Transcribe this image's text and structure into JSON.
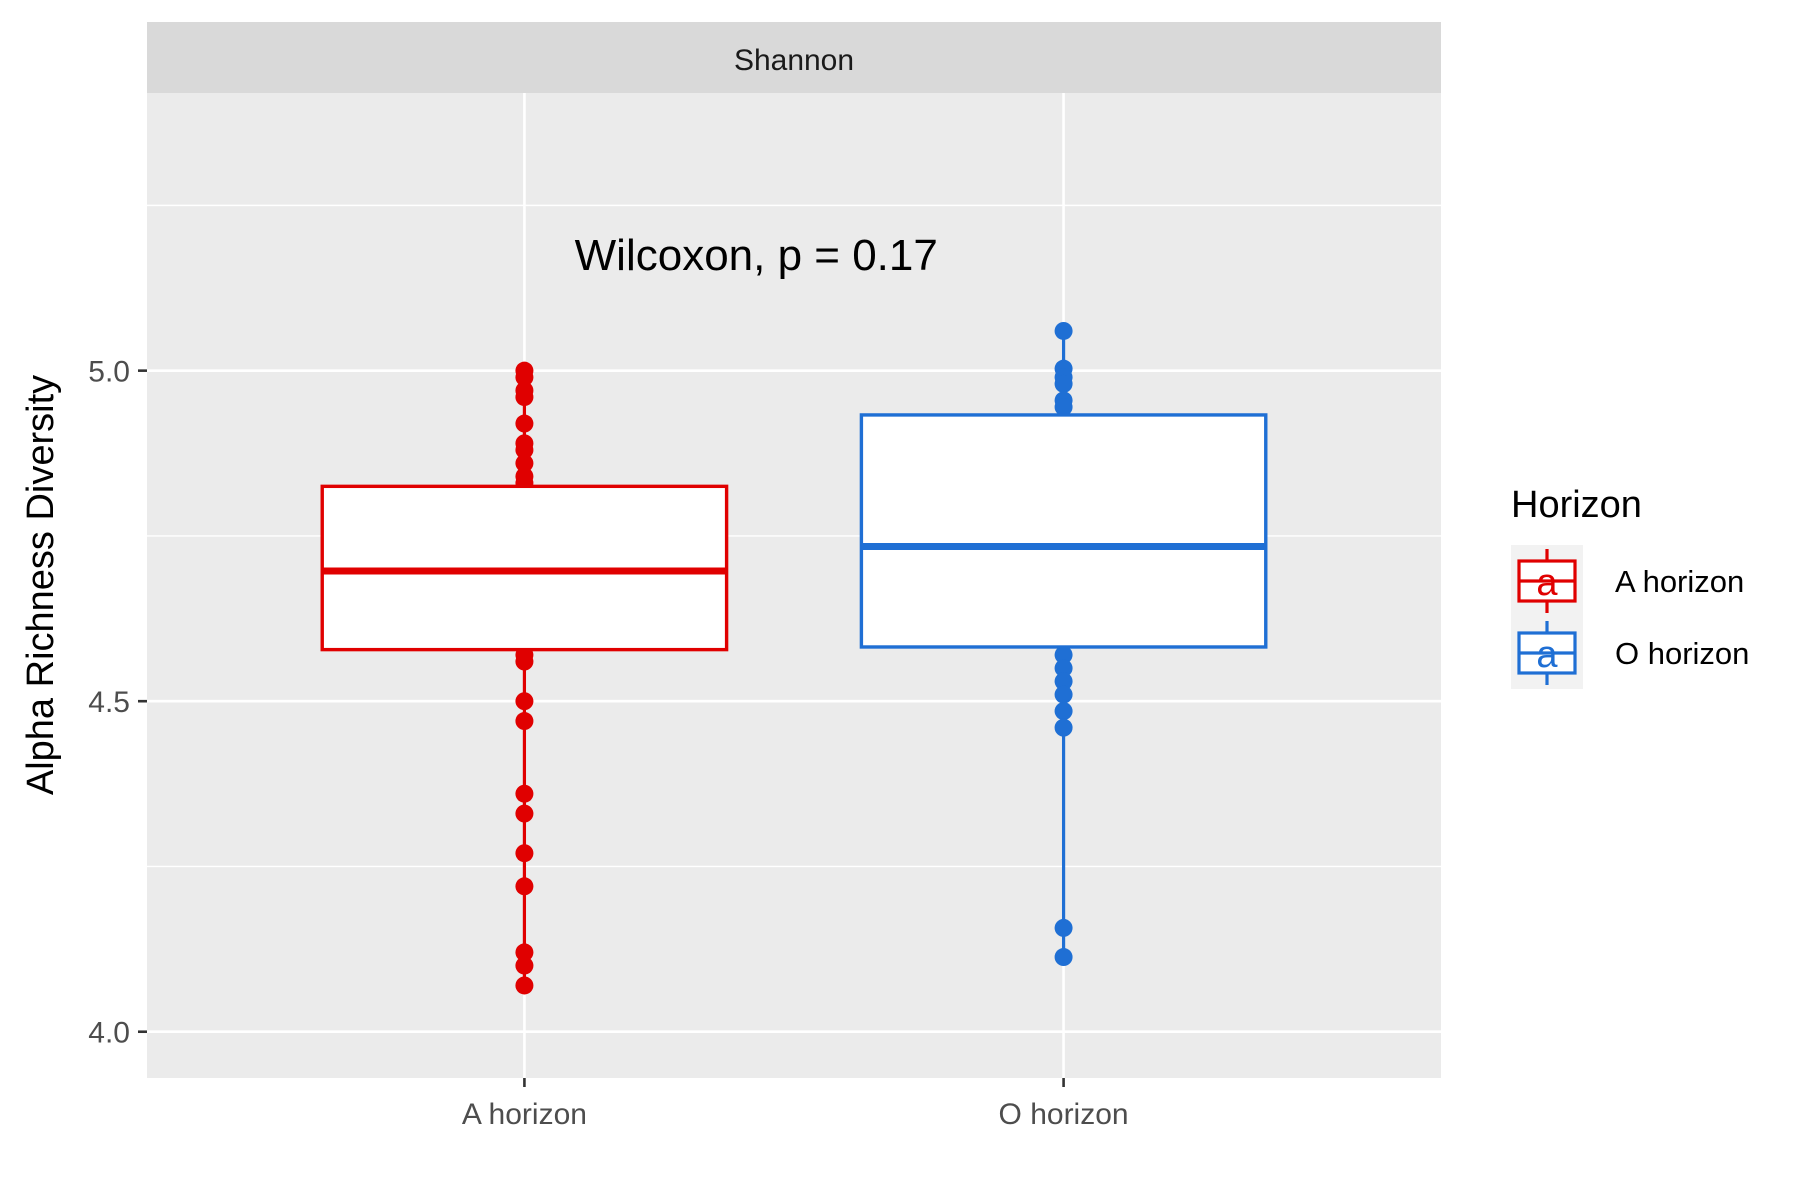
{
  "chart_data": {
    "type": "box",
    "facet_label": "Shannon",
    "ylabel": "Alpha Richness Diversity",
    "xlabel": "",
    "ylim": [
      3.93,
      5.42
    ],
    "yticks": [
      4.0,
      4.5,
      5.0
    ],
    "ytick_labels": [
      "4.0",
      "4.5",
      "5.0"
    ],
    "minor_yticks": [
      4.25,
      4.75,
      5.25
    ],
    "categories": [
      "A horizon",
      "O horizon"
    ],
    "annotation": "Wilcoxon, p = 0.17",
    "annotation_pos": {
      "x": 1.43,
      "y": 5.175
    },
    "legend": {
      "title": "Horizon",
      "placement": "right",
      "glyph": "a"
    },
    "grid": true,
    "groups": [
      {
        "name": "A horizon",
        "color": "#e00000",
        "q1": 4.578,
        "median": 4.697,
        "q3": 4.825,
        "whisker_low": 4.067,
        "whisker_high": 5.0,
        "points": [
          5.0,
          4.99,
          4.97,
          4.96,
          4.92,
          4.89,
          4.88,
          4.86,
          4.84,
          4.83,
          4.57,
          4.56,
          4.5,
          4.47,
          4.36,
          4.33,
          4.27,
          4.22,
          4.12,
          4.1,
          4.07
        ]
      },
      {
        "name": "O horizon",
        "color": "#1f6fd4",
        "q1": 4.582,
        "median": 4.734,
        "q3": 4.933,
        "whisker_low": 4.113,
        "whisker_high": 5.06,
        "points": [
          5.06,
          5.003,
          4.99,
          4.98,
          4.955,
          4.945,
          4.57,
          4.55,
          4.53,
          4.51,
          4.485,
          4.46,
          4.157,
          4.113
        ]
      }
    ]
  }
}
